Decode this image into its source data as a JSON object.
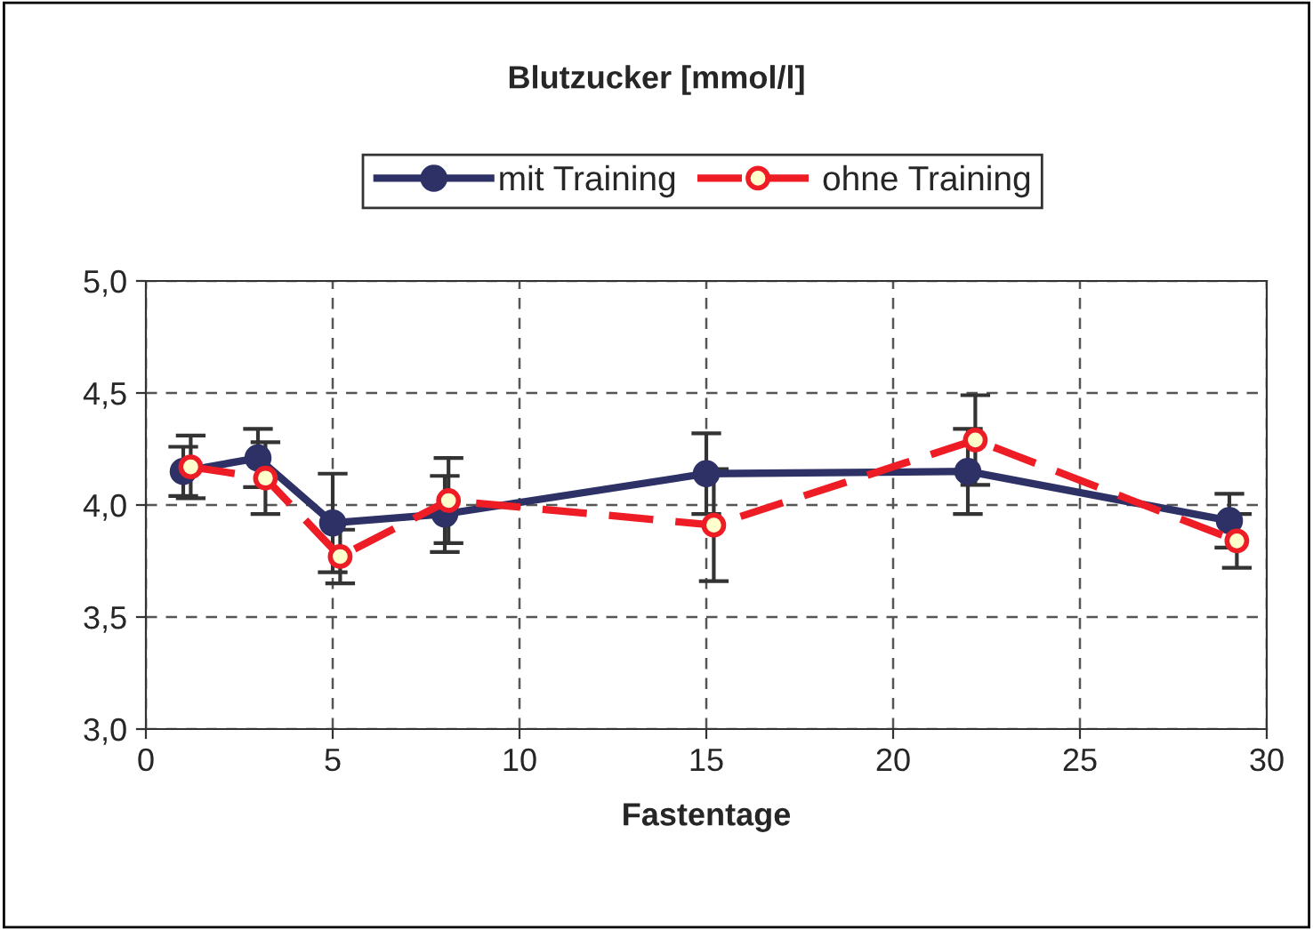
{
  "chart_data": {
    "type": "line",
    "title": "Blutzucker [mmol/l]",
    "xlabel": "Fastentage",
    "xlim": [
      0,
      30
    ],
    "xticks": [
      0,
      5,
      10,
      15,
      20,
      25,
      30
    ],
    "ylim": [
      3.0,
      5.0
    ],
    "yticks": [
      {
        "value": 3.0,
        "label": "3,0"
      },
      {
        "value": 3.5,
        "label": "3,5"
      },
      {
        "value": 4.0,
        "label": "4,0"
      },
      {
        "value": 4.5,
        "label": "4,5"
      },
      {
        "value": 5.0,
        "label": "5,0"
      }
    ],
    "grid": true,
    "legend": "top",
    "series": [
      {
        "name": "mit Training",
        "color": "#2e3166",
        "marker": "circle",
        "line_style": "solid",
        "x": [
          1,
          3,
          5,
          8,
          15,
          22,
          29
        ],
        "values": [
          4.15,
          4.21,
          3.92,
          3.96,
          4.14,
          4.15,
          3.93
        ],
        "errors": [
          0.11,
          0.13,
          0.22,
          0.17,
          0.18,
          0.19,
          0.12
        ]
      },
      {
        "name": "ohne Training",
        "color": "#ee1c25",
        "marker": "circle",
        "line_style": "dashed",
        "x": [
          1.2,
          3.2,
          5.2,
          8.1,
          15.2,
          22.2,
          29.2
        ],
        "values": [
          4.17,
          4.12,
          3.77,
          4.02,
          3.91,
          4.29,
          3.84
        ],
        "errors": [
          0.14,
          0.16,
          0.12,
          0.19,
          0.25,
          0.2,
          0.12
        ]
      }
    ]
  }
}
